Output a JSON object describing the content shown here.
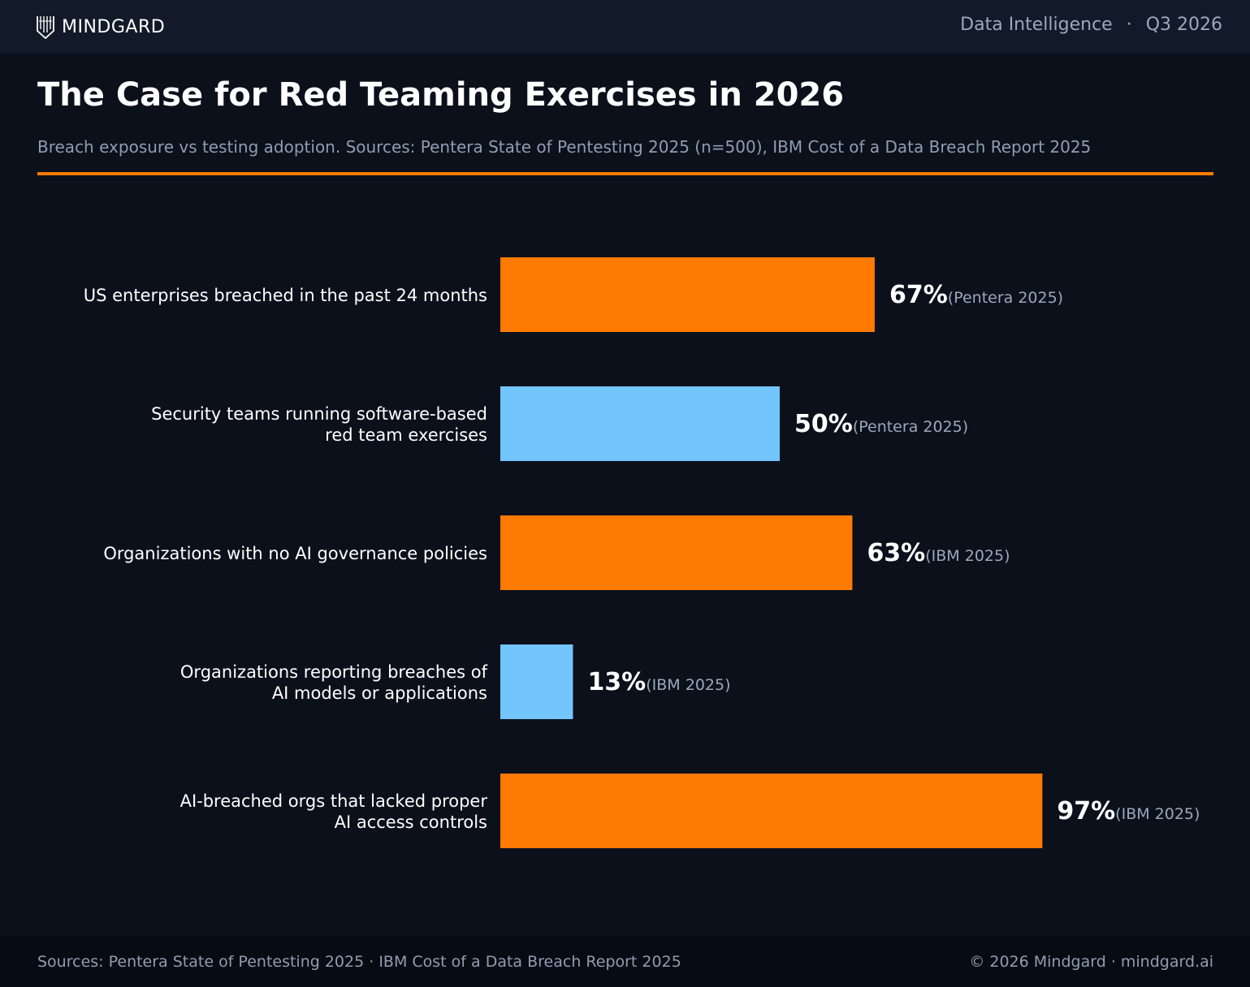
{
  "header": {
    "brand": "MINDGARD",
    "logo_icon": "mindgard-shield-icon",
    "section": "Data Intelligence",
    "separator": "·",
    "period": "Q3 2026"
  },
  "title": "The Case for Red Teaming Exercises in 2026",
  "subtitle": "Breach exposure vs testing adoption. Sources: Pentera State of Pentesting 2025 (n=500), IBM Cost of a Data Breach Report 2025",
  "colors": {
    "accent": "#ff7a00",
    "highlight": "#ff7a00",
    "secondary": "#73c5fd",
    "background": "#0b101b"
  },
  "chart_data": {
    "type": "bar",
    "orientation": "horizontal",
    "title": "",
    "xlabel": "",
    "ylabel": "",
    "xlim": [
      0,
      100
    ],
    "grid": false,
    "legend": "none",
    "value_suffix": "%",
    "categories": [
      [
        "US enterprises breached in the past 24 months"
      ],
      [
        "Security teams running software-based",
        "red team exercises"
      ],
      [
        "Organizations with no AI governance policies"
      ],
      [
        "Organizations reporting breaches of",
        "AI models or applications"
      ],
      [
        "AI-breached orgs that lacked proper",
        "AI access controls"
      ]
    ],
    "values": [
      67,
      50,
      63,
      13,
      97
    ],
    "sources": [
      "(Pentera 2025)",
      "(Pentera 2025)",
      "(IBM 2025)",
      "(IBM 2025)",
      "(IBM 2025)"
    ],
    "bar_colors": [
      "#ff7a00",
      "#73c5fd",
      "#ff7a00",
      "#73c5fd",
      "#ff7a00"
    ]
  },
  "footer": {
    "sources": "Sources: Pentera State of Pentesting 2025  ·  IBM Cost of a Data Breach Report 2025",
    "copyright": "© 2026 Mindgard  ·  mindgard.ai"
  }
}
